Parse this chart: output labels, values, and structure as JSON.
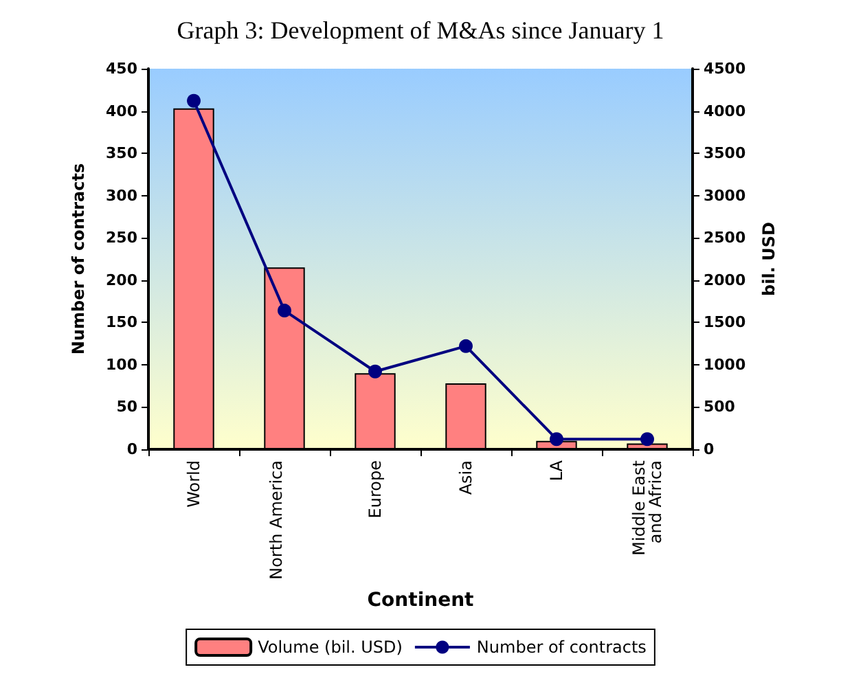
{
  "chart_data": {
    "type": "bar",
    "title": "Graph 3: Development of M&As since January 1",
    "xlabel": "Continent",
    "ylabel": "Number of contracts",
    "y2label": "bil. USD",
    "categories": [
      "World",
      "North America",
      "Europe",
      "Asia",
      "LA",
      "Middle East and Africa"
    ],
    "series": [
      {
        "name": "Volume (bil. USD)",
        "axis": "y2",
        "color": "#ff8080",
        "values": [
          4030,
          2150,
          900,
          780,
          100,
          70
        ]
      },
      {
        "name": "Number of contracts",
        "type": "line",
        "color": "#000080",
        "marker": "circle",
        "values": [
          412,
          164,
          92,
          122,
          12,
          12
        ]
      }
    ],
    "ylim": [
      0,
      450
    ],
    "yticks": [
      0,
      50,
      100,
      150,
      200,
      250,
      300,
      350,
      400,
      450
    ],
    "y2lim": [
      0,
      4500
    ],
    "y2ticks": [
      0,
      500,
      1000,
      1500,
      2000,
      2500,
      3000,
      3500,
      4000,
      4500
    ],
    "grid": false,
    "legend": "bottom"
  }
}
